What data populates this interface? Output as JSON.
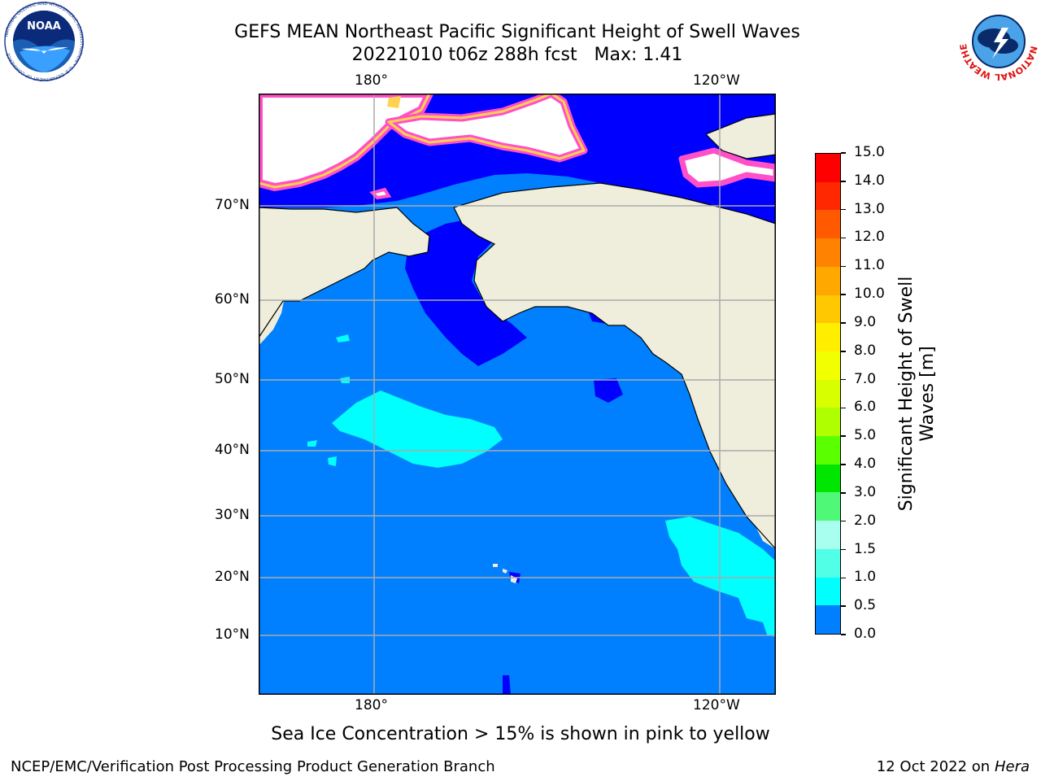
{
  "header": {
    "title_line1": "GEFS MEAN Northeast Pacific Significant Height of Swell Waves",
    "title_line2": "20221010 t06z 288h fcst   Max: 1.41"
  },
  "logos": {
    "noaa": {
      "text": "NOAA",
      "ring_text": "NATIONAL OCEANIC AND ATMOSPHERIC ADMINISTRATION • U.S. DEPARTMENT OF COMMERCE"
    },
    "nws": {
      "ring_text": "NATIONAL WEATHER SERVICE"
    }
  },
  "map": {
    "lon_labels": [
      "180°",
      "120°W"
    ],
    "lat_labels": [
      "70°N",
      "60°N",
      "50°N",
      "40°N",
      "30°N",
      "20°N",
      "10°N"
    ],
    "colors": {
      "ocean_swell_0_5_1_0": "#0080ff",
      "ocean_swell_0_0_0_5": "#0000ff",
      "ocean_swell_1_0_1_5": "#00ffff",
      "land": "#efeedc",
      "sea_ice_low": "#ff50c8",
      "sea_ice_high": "#ffd250"
    }
  },
  "colorbar": {
    "label_line1": "Significant Height of Swell",
    "label_line2": "Waves [m]",
    "ticks": [
      "15.0",
      "14.0",
      "13.0",
      "12.0",
      "11.0",
      "10.0",
      "9.0",
      "8.0",
      "7.0",
      "6.0",
      "5.0",
      "4.0",
      "3.0",
      "2.0",
      "1.5",
      "1.0",
      "0.5",
      "0.0"
    ],
    "colors_top_to_bottom": [
      "#ff0000",
      "#ff2800",
      "#ff5a00",
      "#ff8200",
      "#ffa800",
      "#ffc800",
      "#ffee00",
      "#f2ff00",
      "#d8ff00",
      "#b0ff00",
      "#5aff00",
      "#00e600",
      "#50f878",
      "#a8fff0",
      "#50ffe6",
      "#00ffff",
      "#0080ff",
      "#0000ff"
    ]
  },
  "notes": {
    "sea_ice": "Sea Ice Concentration > 15% is shown in pink to yellow"
  },
  "footer": {
    "left": "NCEP/EMC/Verification Post Processing Product Generation Branch",
    "right_prefix": "12 Oct 2022 on ",
    "right_host": "Hera"
  }
}
